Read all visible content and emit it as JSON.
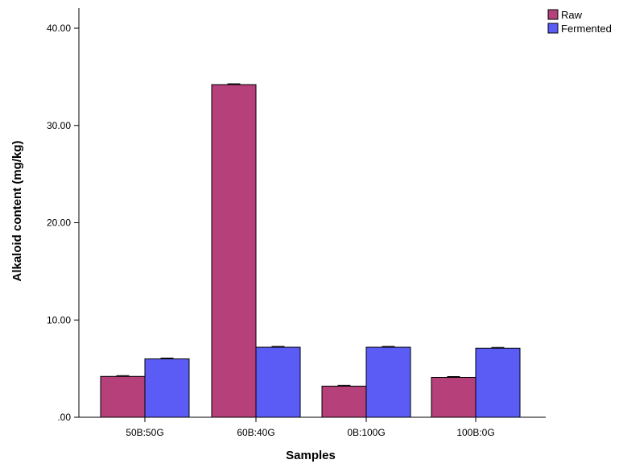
{
  "chart_data": {
    "type": "bar",
    "categories": [
      "50B:50G",
      "60B:40G",
      "0B:100G",
      "100B:0G"
    ],
    "series": [
      {
        "name": "Raw",
        "values": [
          4.2,
          34.2,
          3.2,
          4.1
        ],
        "color": "#b5407a"
      },
      {
        "name": "Fermented",
        "values": [
          6.0,
          7.2,
          7.2,
          7.1
        ],
        "color": "#5a5cf5"
      }
    ],
    "title": "",
    "xlabel": "Samples",
    "ylabel": "Alkaloid content (mg/kg)",
    "ylim": [
      0,
      40
    ],
    "yticks": [
      0,
      10,
      20,
      30,
      40
    ],
    "ytick_labels": [
      ".00",
      "10.00",
      "20.00",
      "30.00",
      "40.00"
    ],
    "error_bars": true,
    "grid": false,
    "legend_position": "top-right"
  }
}
